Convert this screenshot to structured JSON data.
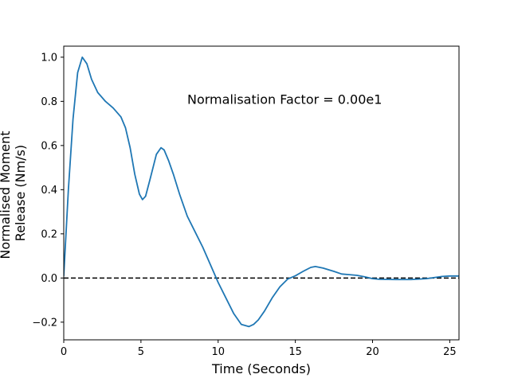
{
  "chart_data": {
    "type": "line",
    "xlabel": "Time (Seconds)",
    "ylabel_lines": [
      "Normalised Moment",
      "Release (Nm/s)"
    ],
    "xlim": [
      0,
      25.6
    ],
    "ylim": [
      -0.28,
      1.05
    ],
    "x_ticks": [
      0,
      5,
      10,
      15,
      20,
      25
    ],
    "x_tick_labels": [
      "0",
      "5",
      "10",
      "15",
      "20",
      "25"
    ],
    "y_ticks": [
      -0.2,
      0.0,
      0.2,
      0.4,
      0.6,
      0.8,
      1.0
    ],
    "y_tick_labels": [
      "−0.2",
      "0.0",
      "0.2",
      "0.4",
      "0.6",
      "0.8",
      "1.0"
    ],
    "grid": false,
    "annotation": {
      "text": "Normalisation Factor = 0.00e1",
      "x": 8.0,
      "y": 0.81
    },
    "reference_line": {
      "y": 0.0,
      "style": "dashed",
      "color": "#000000"
    },
    "series": [
      {
        "color": "#1f77b4",
        "x": [
          0.0,
          0.3,
          0.6,
          0.9,
          1.2,
          1.5,
          1.8,
          2.2,
          2.7,
          3.2,
          3.7,
          4.0,
          4.3,
          4.6,
          4.9,
          5.1,
          5.3,
          5.6,
          6.0,
          6.3,
          6.5,
          6.8,
          7.1,
          7.5,
          8.0,
          8.5,
          9.0,
          9.5,
          10.0,
          10.5,
          11.0,
          11.5,
          12.0,
          12.3,
          12.6,
          13.0,
          13.5,
          14.0,
          14.5,
          15.0,
          15.5,
          16.0,
          16.3,
          16.8,
          17.5,
          18.0,
          18.5,
          19.0,
          19.5,
          20.0,
          20.5,
          21.5,
          22.5,
          23.5,
          24.0,
          24.5,
          25.0,
          25.6
        ],
        "values": [
          0.01,
          0.4,
          0.72,
          0.93,
          1.0,
          0.97,
          0.9,
          0.84,
          0.8,
          0.77,
          0.73,
          0.68,
          0.59,
          0.47,
          0.38,
          0.355,
          0.37,
          0.45,
          0.56,
          0.59,
          0.58,
          0.53,
          0.47,
          0.38,
          0.28,
          0.21,
          0.14,
          0.06,
          -0.02,
          -0.09,
          -0.16,
          -0.21,
          -0.22,
          -0.21,
          -0.19,
          -0.15,
          -0.09,
          -0.04,
          -0.005,
          0.01,
          0.03,
          0.048,
          0.052,
          0.045,
          0.03,
          0.018,
          0.015,
          0.012,
          0.005,
          -0.003,
          -0.006,
          -0.007,
          -0.007,
          -0.003,
          0.002,
          0.007,
          0.009,
          0.009
        ]
      }
    ]
  }
}
